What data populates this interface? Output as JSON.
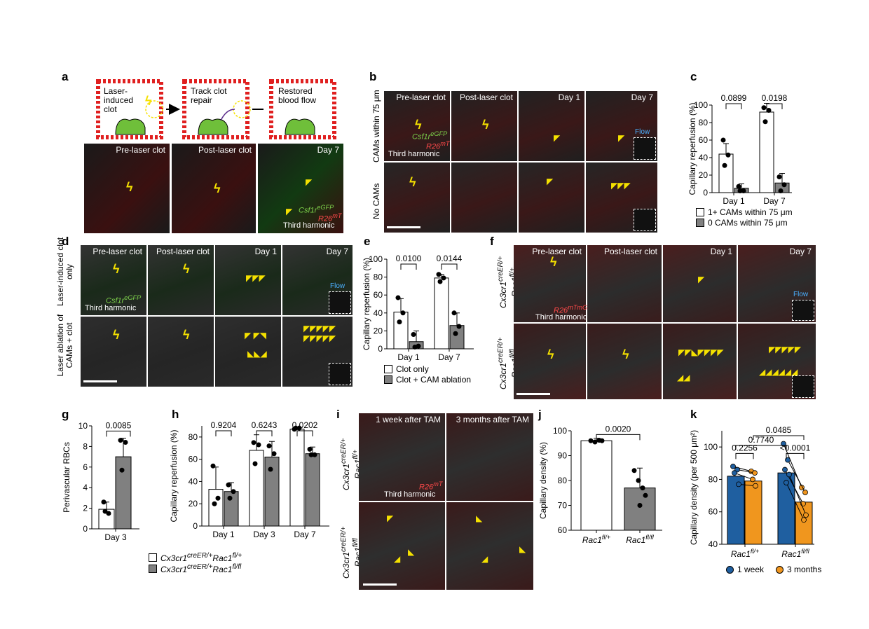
{
  "panel_letters": {
    "a": "a",
    "b": "b",
    "c": "c",
    "d": "d",
    "e": "e",
    "f": "f",
    "g": "g",
    "h": "h",
    "i": "i",
    "j": "j",
    "k": "k"
  },
  "panel_a": {
    "schematic_steps": [
      "Laser-induced clot",
      "Track clot repair",
      "Restored blood flow"
    ],
    "images": [
      "Pre-laser clot",
      "Post-laser clot",
      "Day 7"
    ],
    "labels": {
      "green": "Csf1r",
      "green_sup": "eGFP",
      "red": "R26",
      "red_sup": "mT",
      "white": "Third harmonic"
    }
  },
  "panel_b": {
    "columns": [
      "Pre-laser clot",
      "Post-laser clot",
      "Day 1",
      "Day 7"
    ],
    "rows": [
      "CAMs within 75 μm",
      "No CAMs"
    ],
    "labels": {
      "green": "Csf1r",
      "green_sup": "eGFP",
      "red": "R26",
      "red_sup": "mT",
      "white": "Third harmonic",
      "flow": "Flow"
    }
  },
  "panel_d": {
    "columns": [
      "Pre-laser clot",
      "Post-laser clot",
      "Day 1",
      "Day 7"
    ],
    "rows": [
      "Laser-induced clot only",
      "Laser ablation of CAMs + clot"
    ],
    "labels": {
      "green": "Csf1r",
      "green_sup": "eGFP",
      "white": "Third harmonic",
      "flow": "Flow"
    }
  },
  "panel_f": {
    "columns": [
      "Pre-laser clot",
      "Post-laser clot",
      "Day 1",
      "Day 7"
    ],
    "rows": [
      {
        "main": "Cx3cr1",
        "sup": "creER/+",
        "sub": "Rac1",
        "subsup": "fl/+"
      },
      {
        "main": "Cx3cr1",
        "sup": "creER/+",
        "sub": "Rac1",
        "subsup": "fl/fl"
      }
    ],
    "labels": {
      "red": "R26",
      "red_sup": "mTmG",
      "white": "Third harmonic",
      "flow": "Flow"
    }
  },
  "panel_i": {
    "columns": [
      "1 week after TAM",
      "3 months after TAM"
    ],
    "rows": [
      {
        "main": "Cx3cr1",
        "sup": "creER/+",
        "sub": "Rac1",
        "subsup": "fl/+"
      },
      {
        "main": "Cx3cr1",
        "sup": "creER/+",
        "sub": "Rac1",
        "subsup": "fl/fl"
      }
    ],
    "labels": {
      "red": "R26",
      "red_sup": "mT",
      "white": "Third harmonic"
    }
  },
  "legend_c": [
    "1+ CAMs within 75 μm",
    "0 CAMs within 75 μm"
  ],
  "legend_e": [
    "Clot only",
    "Clot + CAM ablation"
  ],
  "legend_gh": [
    {
      "main": "Cx3cr1",
      "sup": "creER/+",
      "gene": "Rac1",
      "gsup": "fl/+"
    },
    {
      "main": "Cx3cr1",
      "sup": "creER/+",
      "gene": "Rac1",
      "gsup": "fl/fl"
    }
  ],
  "legend_k": [
    "1 week",
    "3 months"
  ],
  "colors": {
    "white_bar": "#ffffff",
    "grey_bar": "#808080",
    "blue": "#1f5fa0",
    "orange": "#f0961e"
  },
  "chart_data": [
    {
      "id": "c",
      "type": "bar",
      "ylabel": "Capillary reperfusion (%)",
      "ylim": [
        0,
        100
      ],
      "yticks": [
        0,
        20,
        40,
        60,
        80,
        100
      ],
      "categories": [
        "Day 1",
        "Day 7"
      ],
      "series": [
        {
          "name": "1+ CAMs within 75 μm",
          "values": [
            44,
            92
          ],
          "err": [
            12,
            10
          ],
          "points": [
            [
              60,
              43,
              31
            ],
            [
              97,
              94,
              81
            ]
          ]
        },
        {
          "name": "0 CAMs within 75 μm",
          "values": [
            5,
            11
          ],
          "err": [
            5,
            11
          ],
          "points": [
            [
              7,
              2,
              2
            ],
            [
              18,
              9,
              2
            ]
          ]
        }
      ],
      "pvalues": [
        "0.0899",
        "0.0198"
      ]
    },
    {
      "id": "e",
      "type": "bar",
      "ylabel": "Capillary reperfusion (%)",
      "ylim": [
        0,
        100
      ],
      "yticks": [
        0,
        20,
        40,
        60,
        80,
        100
      ],
      "categories": [
        "Day 1",
        "Day 7"
      ],
      "series": [
        {
          "name": "Clot only",
          "values": [
            41,
            79
          ],
          "err": [
            15,
            4
          ],
          "points": [
            [
              57,
              40,
              30
            ],
            [
              83,
              79,
              75
            ]
          ]
        },
        {
          "name": "Clot + CAM ablation",
          "values": [
            8,
            26
          ],
          "err": [
            12,
            14
          ],
          "points": [
            [
              16,
              3,
              2
            ],
            [
              40,
              25,
              17
            ]
          ]
        }
      ],
      "pvalues": [
        "0.0100",
        "0.0144"
      ]
    },
    {
      "id": "g",
      "type": "bar",
      "ylabel": "Perivascular RBCs",
      "ylim": [
        0,
        10
      ],
      "yticks": [
        0,
        2,
        4,
        6,
        8,
        10
      ],
      "categories": [
        "Day 3"
      ],
      "series": [
        {
          "name": "Cx3cr1creER/+Rac1fl/+",
          "values": [
            1.9
          ],
          "err": [
            0.7
          ],
          "points": [
            [
              2.6,
              1.5,
              1.7
            ]
          ]
        },
        {
          "name": "Cx3cr1creER/+Rac1fl/fl",
          "values": [
            7.0
          ],
          "err": [
            1.8
          ],
          "points": [
            [
              8.6,
              8.4,
              5.7
            ]
          ]
        }
      ],
      "pvalues": [
        "0.0085"
      ]
    },
    {
      "id": "h",
      "type": "bar",
      "ylabel": "Capillary reperfusion (%)",
      "ylim": [
        0,
        90
      ],
      "yticks": [
        0,
        20,
        40,
        60,
        80
      ],
      "categories": [
        "Day 1",
        "Day 3",
        "Day 7"
      ],
      "series": [
        {
          "name": "Cx3cr1creER/+Rac1fl/+",
          "values": [
            33,
            68,
            87
          ],
          "err": [
            20,
            14,
            1
          ],
          "points": [
            [
              54,
              25,
              20
            ],
            [
              75,
              73,
              56
            ],
            [
              87,
              88,
              88
            ]
          ]
        },
        {
          "name": "Cx3cr1creER/+Rac1fl/fl",
          "values": [
            31,
            62,
            65
          ],
          "err": [
            8,
            14,
            6
          ],
          "points": [
            [
              37,
              31,
              25
            ],
            [
              72,
              65,
              51
            ],
            [
              69,
              64,
              64
            ]
          ]
        }
      ],
      "pvalues": [
        "0.9204",
        "0.6243",
        "0.0202"
      ]
    },
    {
      "id": "j",
      "type": "bar",
      "ylabel": "Capillary density (%)",
      "ylim": [
        60,
        100
      ],
      "yticks": [
        60,
        70,
        80,
        90,
        100
      ],
      "categories": [
        "Rac1fl/+",
        "Rac1fl/fl"
      ],
      "values": [
        96,
        77
      ],
      "err": [
        1,
        8
      ],
      "points": [
        [
          96,
          95.5,
          96.2,
          96
        ],
        [
          84,
          80,
          77,
          74,
          70
        ]
      ],
      "pvalues": [
        "0.0020"
      ]
    },
    {
      "id": "k",
      "type": "bar",
      "ylabel": "Capillary density (per 500 μm²)",
      "ylim": [
        40,
        110
      ],
      "yticks": [
        40,
        60,
        80,
        100
      ],
      "categories": [
        "Rac1fl/+",
        "Rac1fl/fl"
      ],
      "series": [
        {
          "name": "1 week",
          "values": [
            82,
            84
          ],
          "paired": [
            [
              88,
              86,
              84,
              77
            ],
            [
              102,
              92,
              86,
              83,
              78
            ]
          ]
        },
        {
          "name": "3 months",
          "values": [
            79,
            66
          ],
          "paired": [
            [
              85,
              84,
              80,
              76
            ],
            [
              75,
              72,
              65,
              58,
              55
            ]
          ]
        }
      ],
      "pvalues": [
        "0.2256",
        "<0.0001",
        "0.7740",
        "0.0485"
      ]
    }
  ]
}
